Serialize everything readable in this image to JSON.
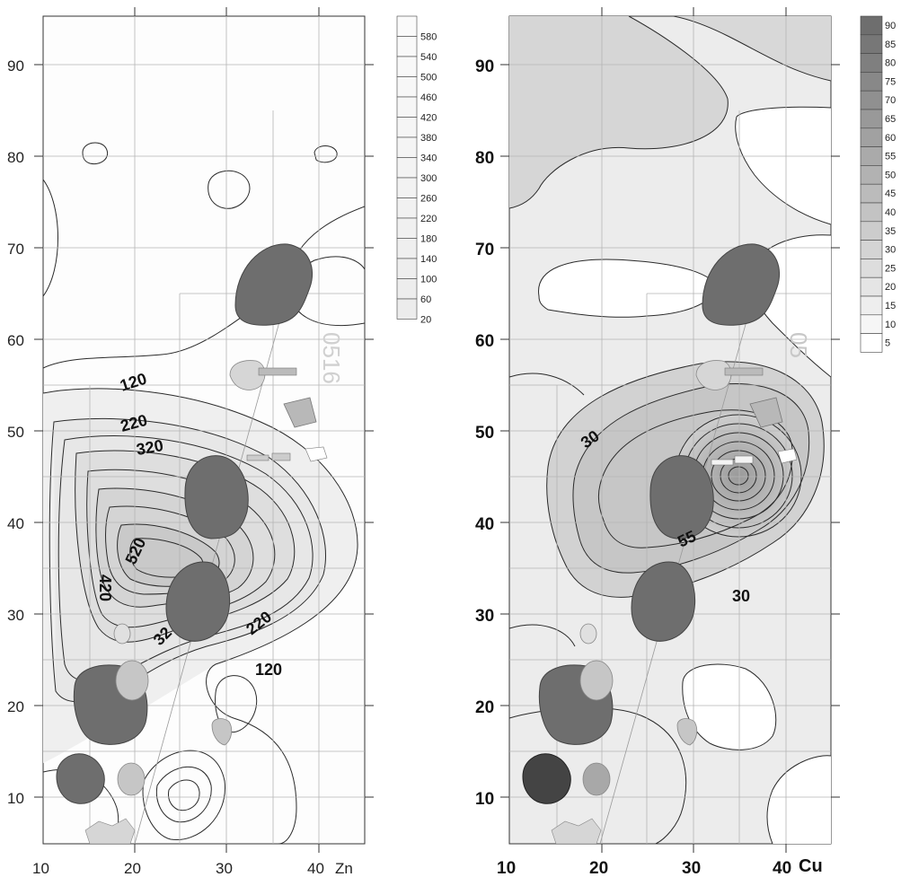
{
  "panels": [
    {
      "id": "zn",
      "element_label": "Zn",
      "x_ticks": [
        "10",
        "20",
        "30",
        "40"
      ],
      "y_ticks": [
        "10",
        "20",
        "30",
        "40",
        "50",
        "60",
        "70",
        "80",
        "90"
      ],
      "contour_labels": [
        "120",
        "220",
        "320",
        "520",
        "420",
        "32",
        "220",
        "120"
      ],
      "legend_levels": [
        "580",
        "540",
        "500",
        "460",
        "420",
        "380",
        "340",
        "300",
        "260",
        "220",
        "180",
        "140",
        "100",
        "60",
        "20"
      ],
      "watermark": "0516"
    },
    {
      "id": "cu",
      "element_label": "Cu",
      "x_ticks": [
        "10",
        "20",
        "30",
        "40"
      ],
      "y_ticks": [
        "10",
        "20",
        "30",
        "40",
        "50",
        "60",
        "70",
        "80",
        "90"
      ],
      "contour_labels": [
        "30",
        "55",
        "30"
      ],
      "legend_levels": [
        "90",
        "85",
        "80",
        "75",
        "70",
        "65",
        "60",
        "55",
        "50",
        "45",
        "40",
        "35",
        "30",
        "25",
        "20",
        "15",
        "10",
        "5"
      ],
      "watermark": "05"
    }
  ],
  "colors": {
    "feature_dark": "#6e6e6e",
    "feature_light": "#c6c6c6",
    "grid": "#b4b4b4",
    "contour": "#2a2a2a"
  }
}
